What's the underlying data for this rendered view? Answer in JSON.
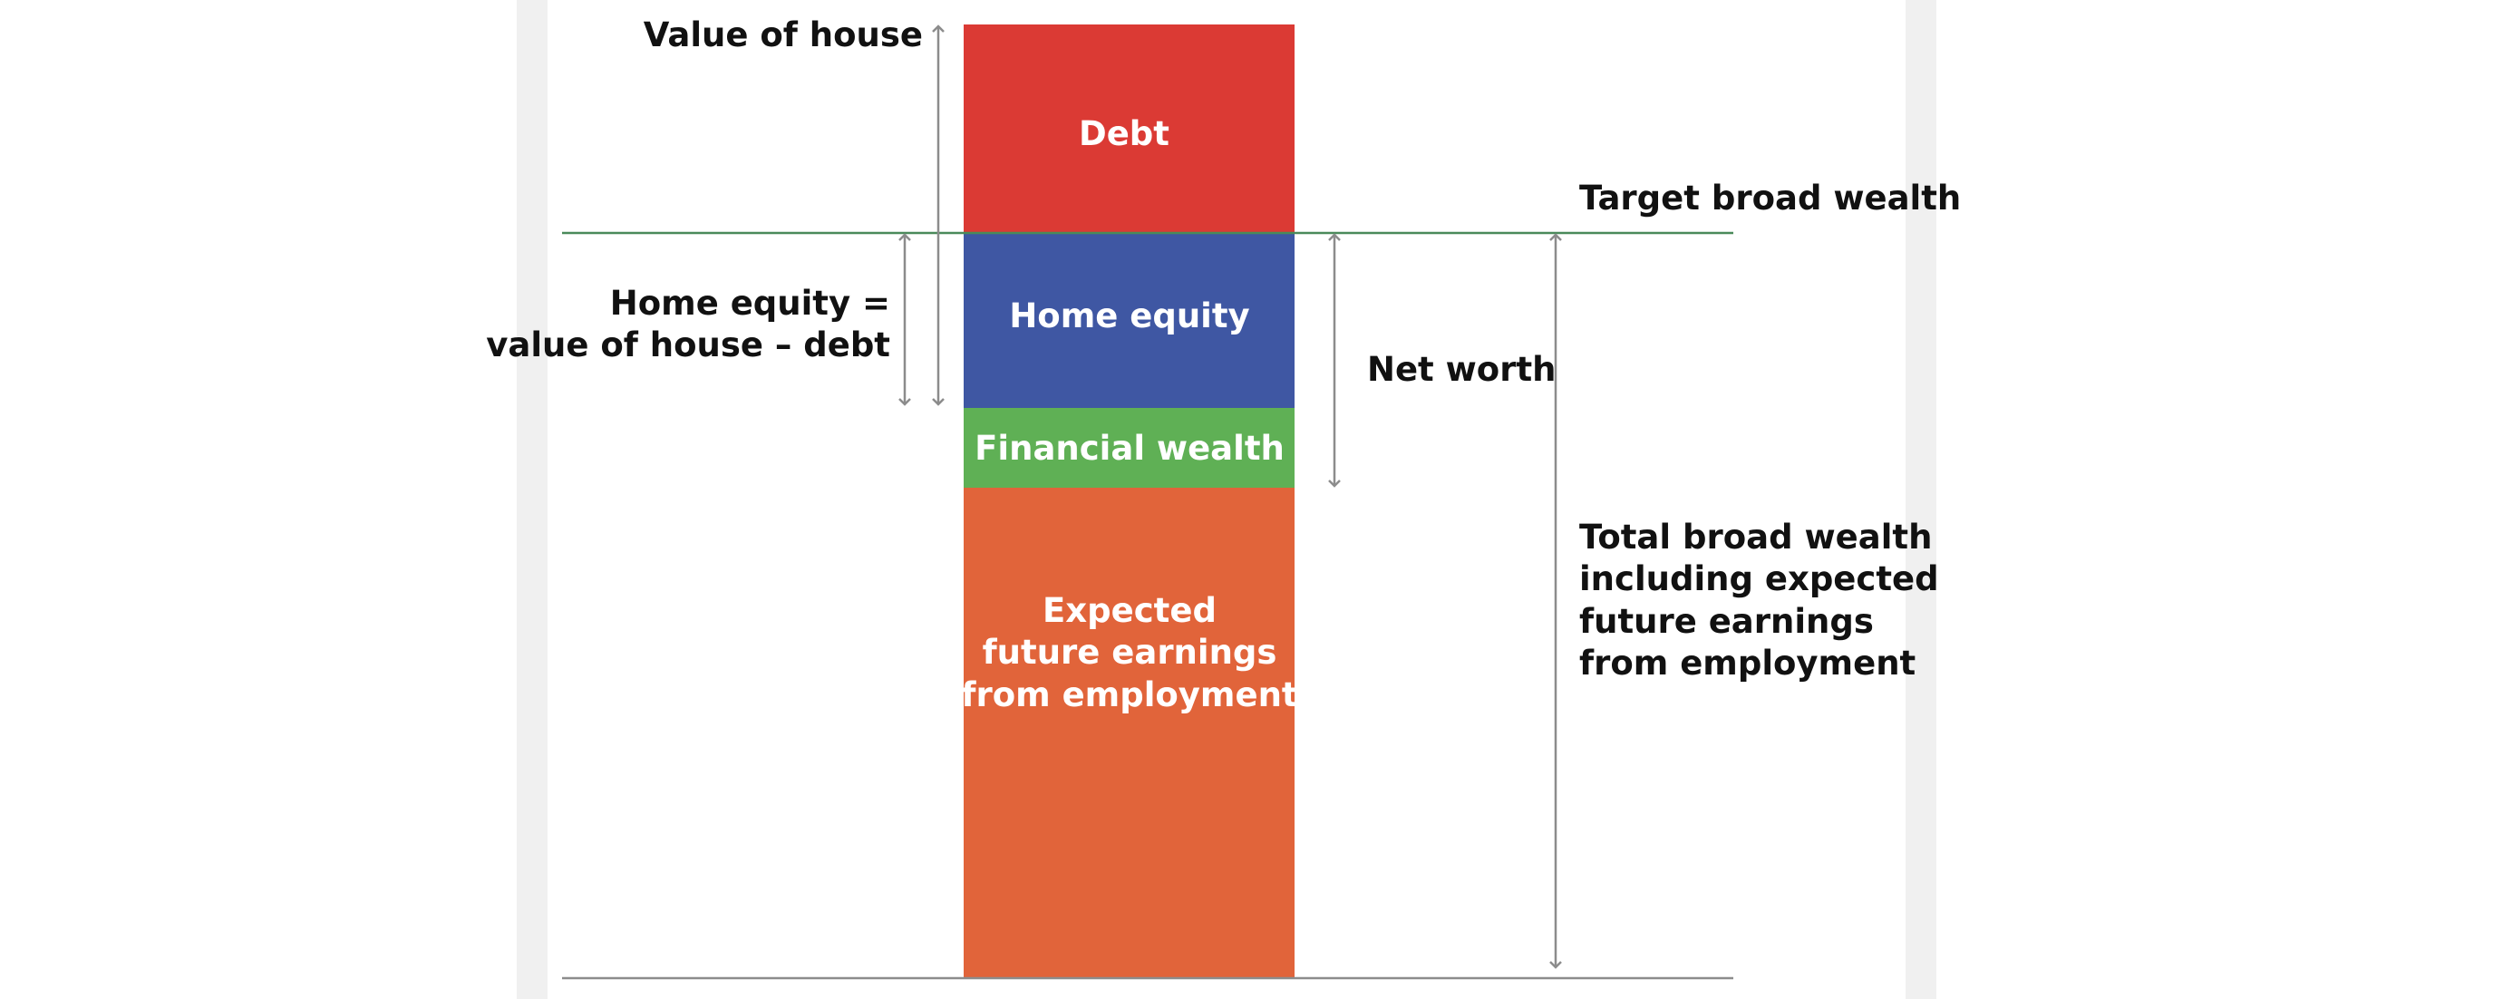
{
  "diagram": {
    "colors": {
      "debt": "#db3a34",
      "home_equity": "#3f57a3",
      "financial_wealth": "#5fb055",
      "future_earnings": "#e1643a",
      "target_line": "#4a8a5a",
      "arrow": "#8c8c8c",
      "background_band": "#f0f0f0"
    },
    "segments": {
      "debt": "Debt",
      "home_equity": "Home equity",
      "financial_wealth": "Financial wealth",
      "future_earnings": [
        "Expected",
        "future earnings",
        "from employment"
      ]
    },
    "annotations": {
      "value_of_house": "Value of house",
      "home_equity_def": [
        "Home equity =",
        "value of house – debt"
      ],
      "net_worth": "Net worth",
      "target_broad_wealth": "Target broad wealth",
      "total_broad_wealth": [
        "Total broad wealth",
        "including expected",
        "future earnings",
        "from employment"
      ]
    }
  }
}
